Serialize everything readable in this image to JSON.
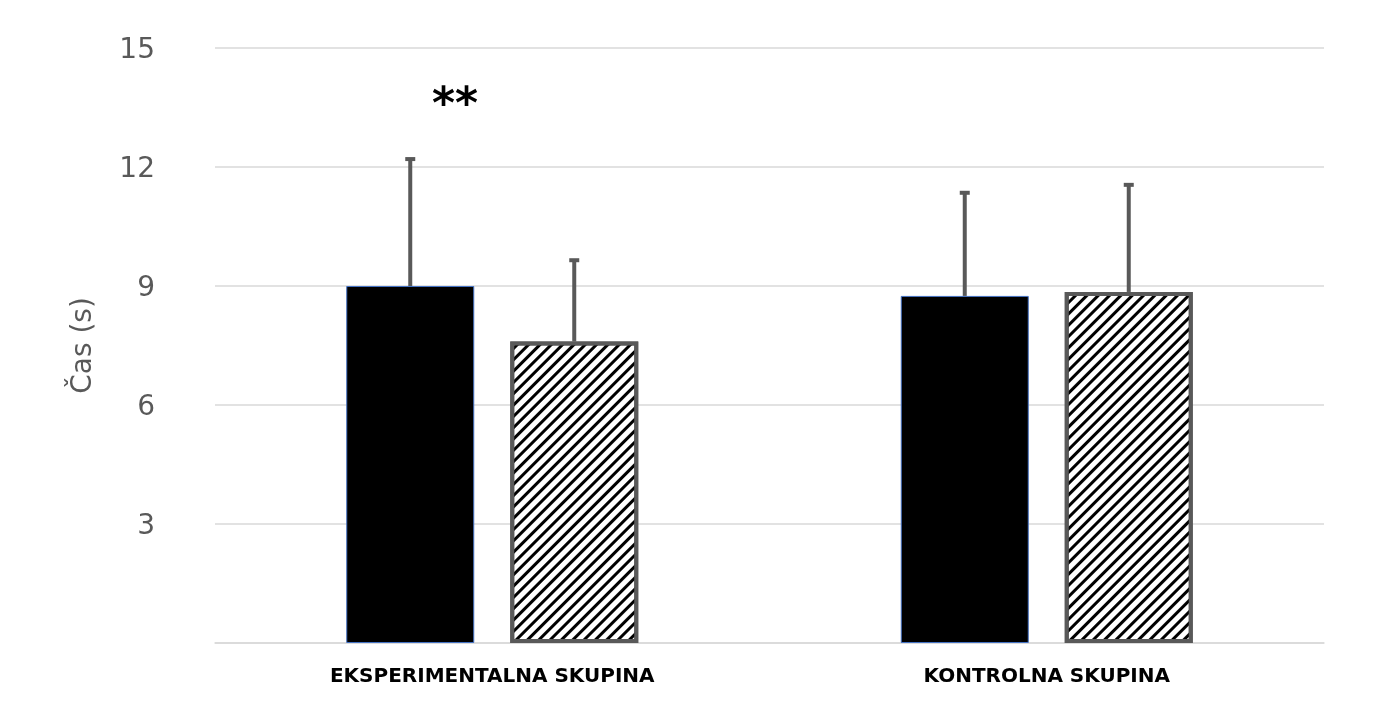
{
  "chart_data": {
    "type": "bar",
    "ylabel": "Čas (s)",
    "categories": [
      "EKSPERIMENTALNA SKUPINA",
      "KONTROLNA SKUPINA"
    ],
    "series": [
      {
        "color": "#000000",
        "values": [
          9.0,
          8.75
        ],
        "errors": [
          [
            9.0,
            12.2
          ],
          [
            8.75,
            11.35
          ]
        ]
      },
      {
        "color": "#ffffff",
        "values": [
          7.6,
          8.85
        ],
        "errors": [
          [
            7.6,
            9.65
          ],
          [
            8.85,
            11.55
          ]
        ]
      }
    ],
    "ylim": [
      0,
      15
    ],
    "yticks": [
      {
        "value": 0,
        "label": null
      },
      3,
      6,
      9,
      12,
      15
    ],
    "grid": "y",
    "annotations": [
      "**"
    ]
  }
}
